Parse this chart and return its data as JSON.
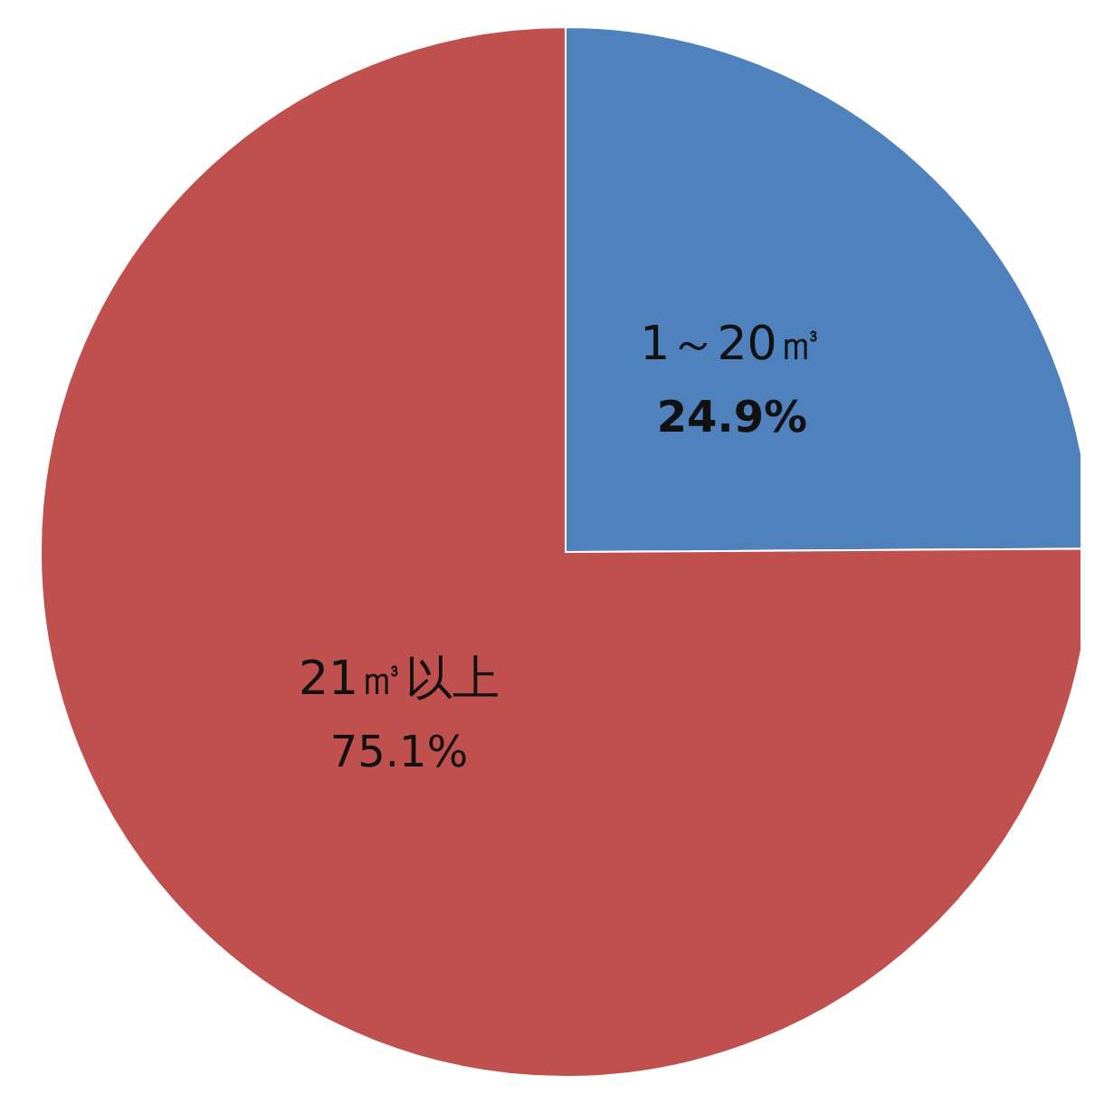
{
  "chart_data": {
    "type": "pie",
    "categories": [
      "1～20㎥",
      "21㎥以上"
    ],
    "values": [
      24.9,
      75.1
    ],
    "colors": [
      "#4f81bd",
      "#c0504d"
    ],
    "value_labels": [
      "24.9%",
      "75.1%"
    ]
  }
}
